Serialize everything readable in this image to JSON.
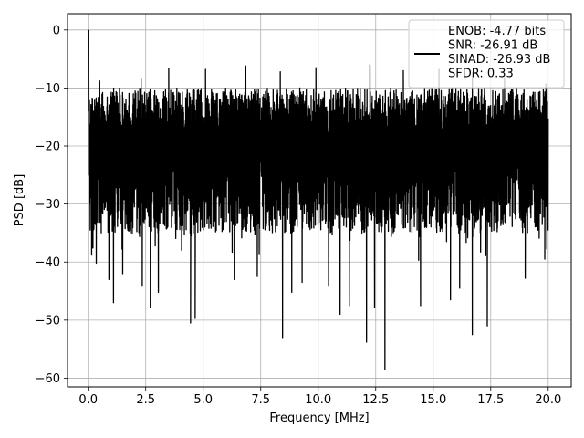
{
  "chart_data": {
    "type": "line",
    "xlabel": "Frequency [MHz]",
    "ylabel": "PSD [dB]",
    "xlim": [
      -0.9,
      21.0
    ],
    "ylim": [
      -61.5,
      2.8
    ],
    "xticks": [
      0.0,
      2.5,
      5.0,
      7.5,
      10.0,
      12.5,
      15.0,
      17.5,
      20.0
    ],
    "xtick_labels": [
      "0.0",
      "2.5",
      "5.0",
      "7.5",
      "10.0",
      "12.5",
      "15.0",
      "17.5",
      "20.0"
    ],
    "yticks": [
      0,
      -10,
      -20,
      -30,
      -40,
      -50,
      -60
    ],
    "ytick_labels": [
      "0",
      "−10",
      "−20",
      "−30",
      "−40",
      "−50",
      "−60"
    ],
    "grid": true,
    "legend_location": "top-right",
    "line_color": "#000000",
    "series": [
      {
        "name": "ENOB: -4.77 bits\nSNR: -26.91 dB\nSINAD: -26.93 dB\nSFDR: 0.33",
        "x_range": [
          0.0,
          20.0
        ],
        "peak": {
          "x": 0.0,
          "y": 0.0
        },
        "typical_upper_envelope": -10.0,
        "typical_lower_envelope": -33.0,
        "dips": [
          {
            "x": 0.15,
            "y": -38.8
          },
          {
            "x": 0.35,
            "y": -40.2
          },
          {
            "x": 0.9,
            "y": -43.0
          },
          {
            "x": 1.1,
            "y": -47.0
          },
          {
            "x": 1.5,
            "y": -42.0
          },
          {
            "x": 2.35,
            "y": -44.0
          },
          {
            "x": 2.7,
            "y": -47.8
          },
          {
            "x": 3.05,
            "y": -45.2
          },
          {
            "x": 4.45,
            "y": -50.5
          },
          {
            "x": 4.65,
            "y": -49.7
          },
          {
            "x": 6.35,
            "y": -43.0
          },
          {
            "x": 7.35,
            "y": -42.5
          },
          {
            "x": 8.45,
            "y": -53.0
          },
          {
            "x": 8.85,
            "y": -45.2
          },
          {
            "x": 9.3,
            "y": -43.5
          },
          {
            "x": 10.45,
            "y": -44.0
          },
          {
            "x": 10.95,
            "y": -49.0
          },
          {
            "x": 11.35,
            "y": -47.5
          },
          {
            "x": 12.1,
            "y": -53.8
          },
          {
            "x": 12.45,
            "y": -47.8
          },
          {
            "x": 12.9,
            "y": -58.5
          },
          {
            "x": 14.45,
            "y": -47.5
          },
          {
            "x": 15.75,
            "y": -46.5
          },
          {
            "x": 16.15,
            "y": -44.5
          },
          {
            "x": 16.7,
            "y": -52.5
          },
          {
            "x": 17.35,
            "y": -51.0
          },
          {
            "x": 19.0,
            "y": -42.8
          },
          {
            "x": 19.85,
            "y": -39.5
          }
        ],
        "peaks": [
          {
            "x": 0.5,
            "y": -8.8
          },
          {
            "x": 2.3,
            "y": -8.5
          },
          {
            "x": 3.5,
            "y": -6.6
          },
          {
            "x": 5.1,
            "y": -6.8
          },
          {
            "x": 6.85,
            "y": -6.2
          },
          {
            "x": 8.35,
            "y": -7.2
          },
          {
            "x": 9.9,
            "y": -6.5
          },
          {
            "x": 12.25,
            "y": -6.0
          },
          {
            "x": 13.7,
            "y": -7.0
          },
          {
            "x": 15.25,
            "y": -6.8
          },
          {
            "x": 16.7,
            "y": -7.4
          },
          {
            "x": 18.1,
            "y": -8.2
          },
          {
            "x": 19.9,
            "y": -9.3
          }
        ]
      }
    ]
  }
}
